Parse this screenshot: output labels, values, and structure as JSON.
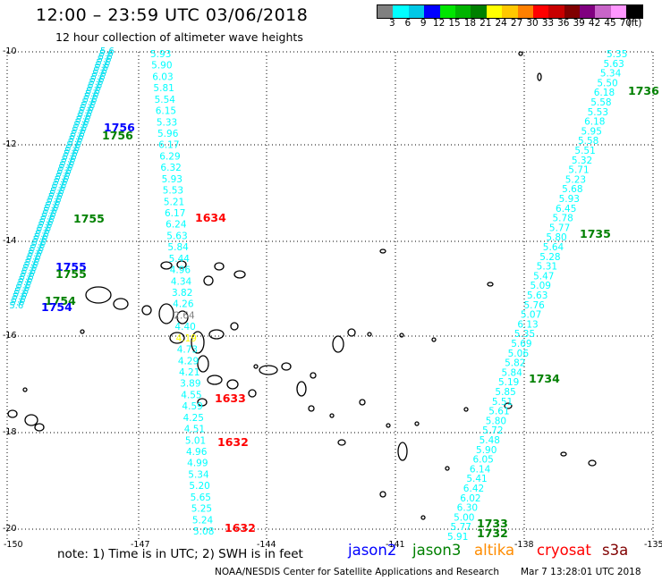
{
  "title": "12:00 – 23:59 UTC 03/06/2018",
  "subtitle": "12 hour collection of altimeter wave heights",
  "colorbar": {
    "colors": [
      "#808080",
      "#00ffff",
      "#00c8e6",
      "#0000ff",
      "#00e600",
      "#00b400",
      "#008000",
      "#ffff00",
      "#ffc800",
      "#ff8000",
      "#ff0000",
      "#c80000",
      "#800000",
      "#800080",
      "#c864c8",
      "#ff96ff",
      "#000000"
    ],
    "labels": [
      "3",
      "6",
      "9",
      "12",
      "15",
      "18",
      "21",
      "24",
      "27",
      "30",
      "33",
      "36",
      "39",
      "42",
      "45",
      "70",
      "(ft)"
    ]
  },
  "axes": {
    "lon_ticks": [
      "-150",
      "-147",
      "-144",
      "-141",
      "-138",
      "-135"
    ],
    "lat_ticks": [
      "-10",
      "-12",
      "-14",
      "-16",
      "-18",
      "-20"
    ]
  },
  "tracks": [
    {
      "name": "track-east",
      "color": "#00ffff",
      "values": [
        "5.35",
        "5.63",
        "5.34",
        "5.50",
        "6.18",
        "5.58",
        "5.53",
        "6.18",
        "5.95",
        "5.58",
        "5.51",
        "5.32",
        "5.71",
        "5.23",
        "5.68",
        "5.93",
        "6.45",
        "5.78",
        "5.77",
        "5.80",
        "5.64",
        "5.28",
        "5.31",
        "5.47",
        "5.09",
        "5.63",
        "5.76",
        "5.07",
        "6.13",
        "5.35",
        "5.69",
        "5.06",
        "5.82",
        "5.84",
        "5.19",
        "5.85",
        "5.51",
        "5.61",
        "5.80",
        "5.72",
        "5.48",
        "5.90",
        "6.05",
        "6.14",
        "5.41",
        "6.42",
        "6.02",
        "6.30",
        "5.00",
        "5.77",
        "5.91"
      ]
    },
    {
      "name": "track-middle",
      "color": "#00ffff",
      "values": [
        "5.93",
        "5.90",
        "6.03",
        "5.81",
        "5.54",
        "6.15",
        "5.33",
        "5.96",
        "6.17",
        "6.29",
        "6.32",
        "5.93",
        "5.53",
        "5.21",
        "6.17",
        "6.24",
        "5.63",
        "5.84",
        "5.44",
        "4.96",
        "4.34",
        "3.82",
        "4.26",
        "2.64",
        "4.40",
        "4.19",
        "4.73",
        "4.29",
        "4.21",
        "3.89",
        "4.55",
        "4.59",
        "4.25",
        "4.51",
        "5.01",
        "4.96",
        "4.99",
        "5.34",
        "5.20",
        "5.65",
        "5.25",
        "5.24",
        "5.08"
      ]
    }
  ],
  "time_labels": [
    {
      "text": "1756",
      "color": "#0000ff"
    },
    {
      "text": "1756",
      "color": "#008000"
    },
    {
      "text": "1755",
      "color": "#008000"
    },
    {
      "text": "1755",
      "color": "#0000ff"
    },
    {
      "text": "1755",
      "color": "#008000"
    },
    {
      "text": "1754",
      "color": "#008000"
    },
    {
      "text": "1754",
      "color": "#0000ff"
    },
    {
      "text": "1634",
      "color": "#ff0000"
    },
    {
      "text": "1633",
      "color": "#ff0000"
    },
    {
      "text": "1632",
      "color": "#ff0000"
    },
    {
      "text": "1632",
      "color": "#ff0000"
    },
    {
      "text": "1736",
      "color": "#008000"
    },
    {
      "text": "1735",
      "color": "#008000"
    },
    {
      "text": "1734",
      "color": "#008000"
    },
    {
      "text": "1733",
      "color": "#008000"
    },
    {
      "text": "1732",
      "color": "#008000"
    }
  ],
  "note": "note:  1) Time is in UTC;  2) SWH is in feet",
  "legend": {
    "jason2": {
      "label": "jason2",
      "color": "#0000ff"
    },
    "jason3": {
      "label": "jason3",
      "color": "#008000"
    },
    "altika": {
      "label": "altika",
      "color": "#ff8c00"
    },
    "cryosat": {
      "label": "cryosat",
      "color": "#ff0000"
    },
    "s3a": {
      "label": "s3a",
      "color": "#800000"
    }
  },
  "credit": "NOAA/NESDIS Center for Satellite Applications and Research",
  "timestamp": "Mar  7 13:28:01 UTC 2018"
}
